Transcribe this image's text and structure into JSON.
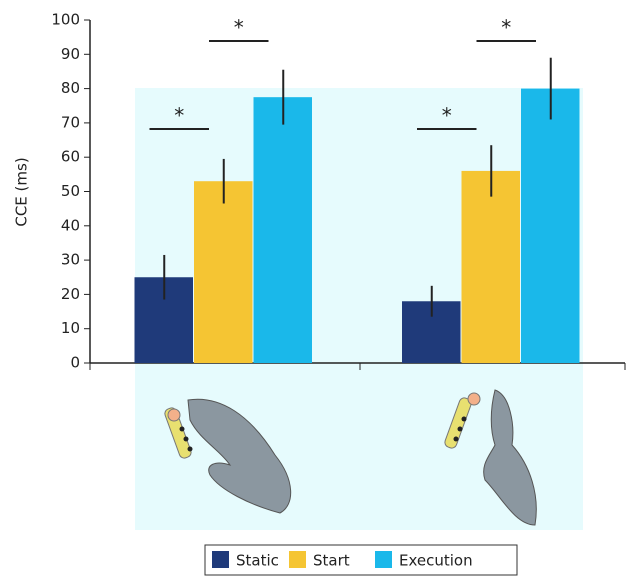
{
  "chart_data": {
    "type": "bar",
    "y_label": "CCE (ms)",
    "categories": [
      null,
      null
    ],
    "series": [
      {
        "name": "Static",
        "color": "#1f3a7a",
        "values": [
          25,
          18
        ],
        "errors": [
          6.5,
          4.5
        ]
      },
      {
        "name": "Start",
        "color": "#f5c533",
        "values": [
          53,
          56
        ],
        "errors": [
          6.5,
          7.5
        ]
      },
      {
        "name": "Execution",
        "color": "#1ab8ea",
        "values": [
          77.5,
          80
        ],
        "errors": [
          8,
          9
        ]
      }
    ],
    "ylim": [
      0,
      100
    ],
    "yticks": [
      0,
      10,
      20,
      30,
      40,
      50,
      60,
      70,
      80,
      90,
      100
    ],
    "annotations": [
      "*",
      "*",
      "*",
      "*"
    ],
    "legend": "bottom"
  }
}
